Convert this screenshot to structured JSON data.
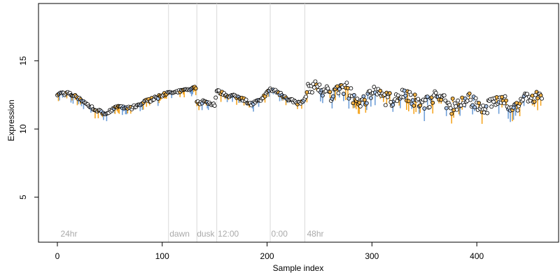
{
  "chart_data": {
    "type": "scatter",
    "title": "",
    "xlabel": "Sample index",
    "ylabel": "Expression",
    "xlim": [
      -18,
      478
    ],
    "ylim": [
      1.7,
      19.2
    ],
    "x_ticks": [
      0,
      100,
      200,
      300,
      400
    ],
    "y_ticks": [
      5,
      10,
      15
    ],
    "grid": false,
    "legend": "none",
    "section_lines": [
      106,
      133,
      152,
      203,
      236
    ],
    "section_labels": [
      {
        "x": 3,
        "label": "24hr"
      },
      {
        "x": 107,
        "label": "dawn"
      },
      {
        "x": 133,
        "label": "dusk"
      },
      {
        "x": 153,
        "label": "12:00"
      },
      {
        "x": 204,
        "label": "0:00"
      },
      {
        "x": 238,
        "label": "48hr"
      }
    ],
    "series_knots": {
      "x": [
        0,
        10,
        20,
        30,
        45,
        55,
        70,
        80,
        95,
        105,
        115,
        125,
        132,
        133,
        140,
        150,
        152,
        160,
        175,
        185,
        195,
        203,
        210,
        220,
        230,
        236,
        240,
        250,
        260,
        270,
        280,
        290,
        300,
        310,
        320,
        330,
        340,
        350,
        360,
        370,
        380,
        390,
        400,
        410,
        420,
        430,
        440,
        450,
        462
      ],
      "values": [
        12.6,
        12.6,
        12.3,
        11.7,
        11.1,
        11.6,
        11.5,
        11.9,
        12.3,
        12.6,
        12.7,
        12.9,
        13.0,
        11.9,
        12.0,
        11.8,
        12.8,
        12.5,
        12.3,
        11.8,
        12.2,
        12.9,
        12.7,
        12.2,
        11.9,
        12.0,
        12.7,
        13.0,
        12.9,
        12.7,
        12.4,
        12.3,
        12.4,
        12.4,
        12.5,
        12.3,
        12.2,
        12.2,
        12.1,
        12.1,
        12.0,
        11.8,
        11.9,
        11.8,
        11.8,
        12.0,
        12.0,
        12.1,
        12.5
      ]
    },
    "colors": {
      "bar_orange": "#f5a623",
      "bar_blue": "#6f9fd8",
      "point_fill": "#ffffff",
      "point_fill_orange": "#f5b54a",
      "point_fill_blue": "#a9c4ea",
      "point_stroke": "#000000",
      "section_line": "#d9d9d9",
      "section_text": "#aaaaaa"
    }
  }
}
